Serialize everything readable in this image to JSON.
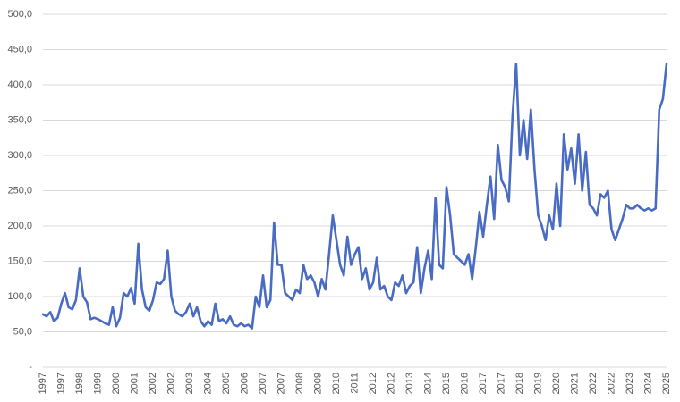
{
  "chart_data": {
    "type": "line",
    "color": "#4a6bc3",
    "grid": true,
    "ylim": [
      0,
      500
    ],
    "yticks": [
      {
        "value": 0,
        "label": "-"
      },
      {
        "value": 50,
        "label": "50,0"
      },
      {
        "value": 100,
        "label": "100,0"
      },
      {
        "value": 150,
        "label": "150,0"
      },
      {
        "value": 200,
        "label": "200,0"
      },
      {
        "value": 250,
        "label": "250,0"
      },
      {
        "value": 300,
        "label": "300,0"
      },
      {
        "value": 350,
        "label": "350,0"
      },
      {
        "value": 400,
        "label": "400,0"
      },
      {
        "value": 450,
        "label": "450,0"
      },
      {
        "value": 500,
        "label": "500,0"
      }
    ],
    "categories": [
      "1997",
      null,
      null,
      null,
      null,
      "1997",
      null,
      null,
      null,
      null,
      "1998",
      null,
      null,
      null,
      null,
      "1999",
      null,
      null,
      null,
      null,
      "2000",
      null,
      null,
      null,
      null,
      "2001",
      null,
      null,
      null,
      null,
      "2002",
      null,
      null,
      null,
      null,
      "2002",
      null,
      null,
      null,
      null,
      "2003",
      null,
      null,
      null,
      null,
      "2004",
      null,
      null,
      null,
      null,
      "2005",
      null,
      null,
      null,
      null,
      "2006",
      null,
      null,
      null,
      null,
      "2007",
      null,
      null,
      null,
      null,
      "2007",
      null,
      null,
      null,
      null,
      "2008",
      null,
      null,
      null,
      null,
      "2009",
      null,
      null,
      null,
      null,
      "2010",
      null,
      null,
      null,
      null,
      "2011",
      null,
      null,
      null,
      null,
      "2012",
      null,
      null,
      null,
      null,
      "2012",
      null,
      null,
      null,
      null,
      "2013",
      null,
      null,
      null,
      null,
      "2014",
      null,
      null,
      null,
      null,
      "2015",
      null,
      null,
      null,
      null,
      "2016",
      null,
      null,
      null,
      null,
      "2017",
      null,
      null,
      null,
      null,
      "2017",
      null,
      null,
      null,
      null,
      "2018",
      null,
      null,
      null,
      null,
      "2019",
      null,
      null,
      null,
      null,
      "2020",
      null,
      null,
      null,
      null,
      "2021",
      null,
      null,
      null,
      null,
      "2022",
      null,
      null,
      null,
      null,
      "2022",
      null,
      null,
      null,
      null,
      "2023",
      null,
      null,
      null,
      null,
      "2024",
      null,
      null,
      null,
      null,
      "2025"
    ],
    "values": [
      75,
      72,
      78,
      65,
      70,
      90,
      105,
      85,
      82,
      95,
      140,
      100,
      92,
      68,
      70,
      68,
      65,
      62,
      60,
      85,
      58,
      70,
      105,
      100,
      112,
      90,
      175,
      110,
      85,
      80,
      95,
      120,
      118,
      125,
      165,
      100,
      80,
      75,
      72,
      78,
      90,
      72,
      85,
      65,
      58,
      65,
      60,
      90,
      65,
      68,
      62,
      72,
      60,
      58,
      62,
      58,
      60,
      55,
      100,
      85,
      130,
      85,
      95,
      205,
      145,
      145,
      105,
      100,
      95,
      110,
      105,
      145,
      125,
      130,
      120,
      100,
      125,
      110,
      160,
      215,
      180,
      145,
      130,
      185,
      145,
      160,
      170,
      125,
      140,
      110,
      120,
      155,
      110,
      115,
      100,
      95,
      120,
      115,
      130,
      105,
      115,
      120,
      170,
      105,
      140,
      165,
      125,
      240,
      145,
      140,
      255,
      215,
      160,
      155,
      150,
      145,
      160,
      125,
      170,
      220,
      185,
      230,
      270,
      210,
      315,
      265,
      255,
      235,
      355,
      430,
      300,
      350,
      295,
      365,
      280,
      215,
      200,
      180,
      215,
      195,
      260,
      200,
      330,
      280,
      310,
      260,
      330,
      250,
      305,
      230,
      225,
      215,
      245,
      240,
      250,
      195,
      180,
      195,
      210,
      230,
      225,
      225,
      230,
      225,
      222,
      225,
      222,
      225,
      365,
      380,
      430
    ]
  }
}
